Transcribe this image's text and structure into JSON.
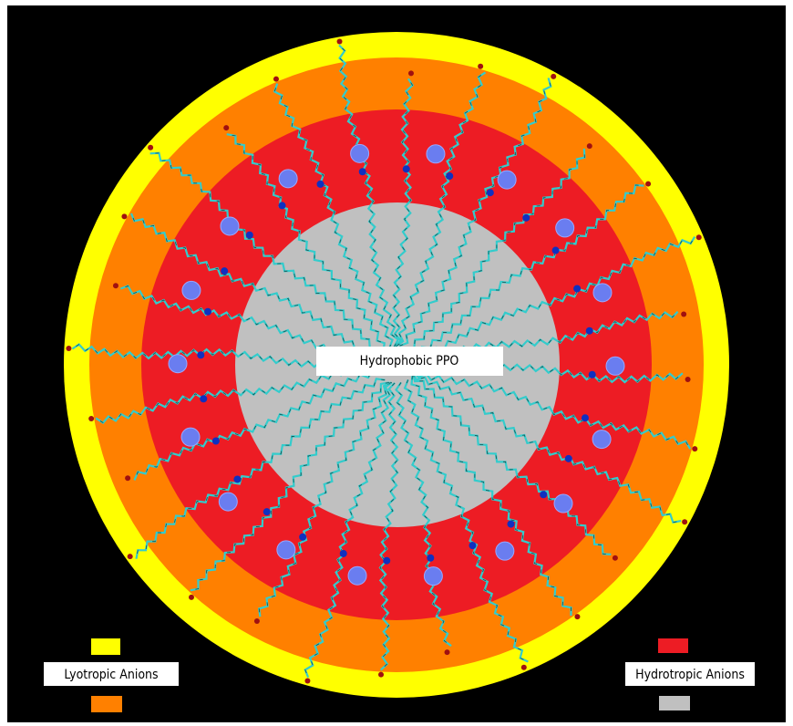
{
  "center_label": "Hydrophobic PPO",
  "legend_left": {
    "label": "Lyotropic Anions"
  },
  "legend_right": {
    "label": "Hydrotropic Anions"
  }
}
